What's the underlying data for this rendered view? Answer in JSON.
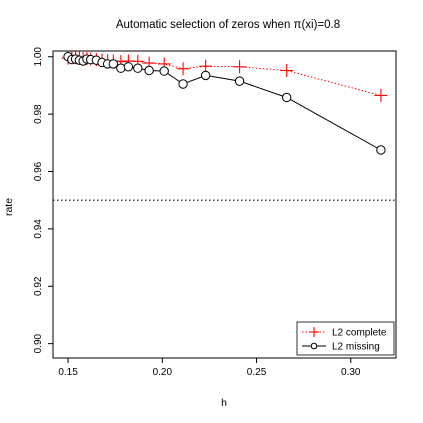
{
  "chart_data": {
    "type": "line",
    "title": "Automatic selection of zeros when π(xi)=0.8",
    "xlabel": "h",
    "ylabel": "rate",
    "xlim": [
      0.142,
      0.324
    ],
    "ylim": [
      0.895,
      1.002
    ],
    "xticks": [
      0.15,
      0.2,
      0.25,
      0.3
    ],
    "xtick_labels": [
      "0.15",
      "0.20",
      "0.25",
      "0.30"
    ],
    "yticks": [
      0.9,
      0.92,
      0.94,
      0.96,
      0.98,
      1.0
    ],
    "ytick_labels": [
      "0.90",
      "0.92",
      "0.94",
      "0.96",
      "0.98",
      "1.00"
    ],
    "reference_line": {
      "y": 0.95,
      "style": "dotted",
      "color": "#000000"
    },
    "legend_position": "bottom-right",
    "series": [
      {
        "name": "L2 complete",
        "color": "#ff0000",
        "line_style": "dotted",
        "marker": "plus",
        "x": [
          0.15,
          0.152,
          0.154,
          0.156,
          0.158,
          0.16,
          0.162,
          0.165,
          0.168,
          0.171,
          0.174,
          0.178,
          0.182,
          0.187,
          0.193,
          0.201,
          0.211,
          0.223,
          0.241,
          0.266,
          0.316
        ],
        "y": [
          0.9995,
          0.9997,
          0.9996,
          0.9995,
          0.9993,
          0.9994,
          0.9992,
          0.999,
          0.9988,
          0.9986,
          0.9985,
          0.9983,
          0.9985,
          0.9984,
          0.9978,
          0.9975,
          0.9958,
          0.9967,
          0.9965,
          0.9952,
          0.9865
        ]
      },
      {
        "name": "L2 missing",
        "color": "#000000",
        "line_style": "solid",
        "marker": "circle",
        "x": [
          0.15,
          0.152,
          0.154,
          0.156,
          0.158,
          0.16,
          0.162,
          0.165,
          0.168,
          0.171,
          0.174,
          0.178,
          0.182,
          0.187,
          0.193,
          0.201,
          0.211,
          0.223,
          0.241,
          0.266,
          0.316
        ],
        "y": [
          1.0,
          0.999,
          0.9992,
          0.9988,
          0.9985,
          0.9992,
          0.999,
          0.9988,
          0.998,
          0.9975,
          0.9975,
          0.996,
          0.9965,
          0.996,
          0.9952,
          0.995,
          0.9905,
          0.9935,
          0.9915,
          0.9858,
          0.9675
        ]
      }
    ]
  }
}
